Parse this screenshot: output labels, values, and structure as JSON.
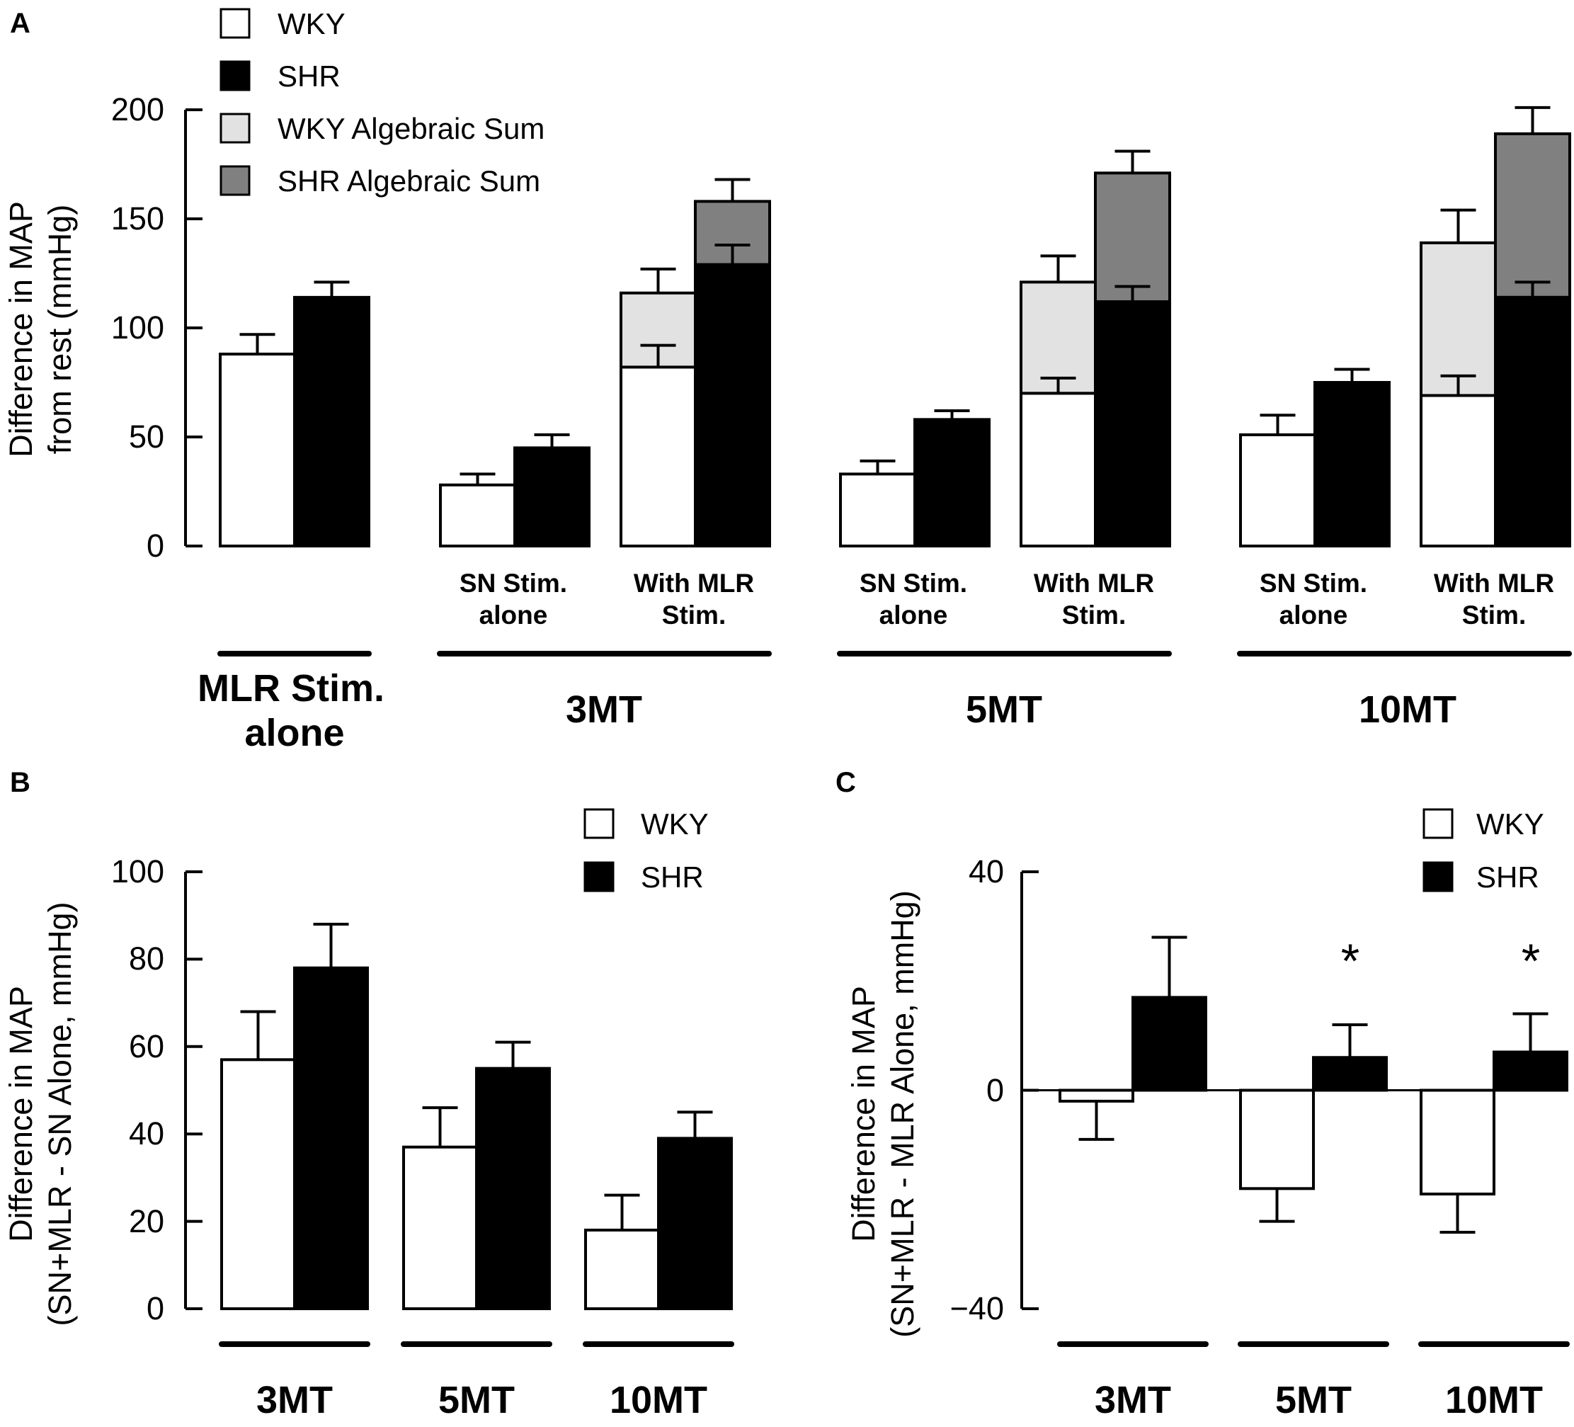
{
  "colors": {
    "wky": "#ffffff",
    "shr": "#000000",
    "wky_sum": "#e2e2e2",
    "shr_sum": "#808080"
  },
  "chart_data": [
    {
      "panel": "A",
      "type": "bar",
      "ylabel_line1": "Difference in MAP",
      "ylabel_line2": "from rest (mmHg)",
      "ylim": [
        0,
        200
      ],
      "yticks": [
        "0",
        "50",
        "100",
        "150",
        "200"
      ],
      "legend": [
        "WKY",
        "SHR",
        "WKY Algebraic Sum",
        "SHR Algebraic Sum"
      ],
      "groups": [
        {
          "label_line1": "MLR Stim.",
          "label_line2": "alone",
          "subgroups": [
            {
              "label_line1": "",
              "label_line2": "",
              "wky": 88,
              "wky_err": 9,
              "shr": 114,
              "shr_err": 7
            }
          ]
        },
        {
          "label_line1": "3MT",
          "label_line2": "",
          "subgroups": [
            {
              "label_line1": "SN Stim.",
              "label_line2": "alone",
              "wky": 28,
              "wky_err": 5,
              "shr": 45,
              "shr_err": 6
            },
            {
              "label_line1": "With MLR",
              "label_line2": "Stim.",
              "wky": 82,
              "wky_err": 10,
              "wky_sum": 116,
              "wky_sum_err": 11,
              "shr": 129,
              "shr_err": 9,
              "shr_sum": 158,
              "shr_sum_err": 10
            }
          ]
        },
        {
          "label_line1": "5MT",
          "label_line2": "",
          "subgroups": [
            {
              "label_line1": "SN Stim.",
              "label_line2": "alone",
              "wky": 33,
              "wky_err": 6,
              "shr": 58,
              "shr_err": 4
            },
            {
              "label_line1": "With MLR",
              "label_line2": "Stim.",
              "wky": 70,
              "wky_err": 7,
              "wky_sum": 121,
              "wky_sum_err": 12,
              "shr": 112,
              "shr_err": 7,
              "shr_sum": 171,
              "shr_sum_err": 10
            }
          ]
        },
        {
          "label_line1": "10MT",
          "label_line2": "",
          "subgroups": [
            {
              "label_line1": "SN Stim.",
              "label_line2": "alone",
              "wky": 51,
              "wky_err": 9,
              "shr": 75,
              "shr_err": 6
            },
            {
              "label_line1": "With MLR",
              "label_line2": "Stim.",
              "wky": 69,
              "wky_err": 9,
              "wky_sum": 139,
              "wky_sum_err": 15,
              "shr": 114,
              "shr_err": 7,
              "shr_sum": 189,
              "shr_sum_err": 12
            }
          ]
        }
      ]
    },
    {
      "panel": "B",
      "type": "bar",
      "ylabel_line1": "Difference in MAP",
      "ylabel_line2": "(SN+MLR - SN Alone, mmHg)",
      "ylim": [
        0,
        100
      ],
      "yticks": [
        "0",
        "20",
        "40",
        "60",
        "80",
        "100"
      ],
      "legend": [
        "WKY",
        "SHR"
      ],
      "categories": [
        "3MT",
        "5MT",
        "10MT"
      ],
      "series": [
        {
          "name": "WKY",
          "values": [
            57,
            37,
            18
          ],
          "errors": [
            11,
            9,
            8
          ]
        },
        {
          "name": "SHR",
          "values": [
            78,
            55,
            39
          ],
          "errors": [
            10,
            6,
            6
          ]
        }
      ]
    },
    {
      "panel": "C",
      "type": "bar",
      "ylabel_line1": "Difference in MAP",
      "ylabel_line2": "(SN+MLR - MLR Alone, mmHg)",
      "ylim": [
        -40,
        40
      ],
      "yticks": [
        "−40",
        "0",
        "40"
      ],
      "legend": [
        "WKY",
        "SHR"
      ],
      "categories": [
        "3MT",
        "5MT",
        "10MT"
      ],
      "series": [
        {
          "name": "WKY",
          "values": [
            -2,
            -18,
            -19
          ],
          "errors": [
            7,
            6,
            7
          ]
        },
        {
          "name": "SHR",
          "values": [
            17,
            6,
            7
          ],
          "errors": [
            11,
            6,
            7
          ]
        }
      ],
      "significance": [
        "",
        "*",
        "*"
      ]
    }
  ]
}
